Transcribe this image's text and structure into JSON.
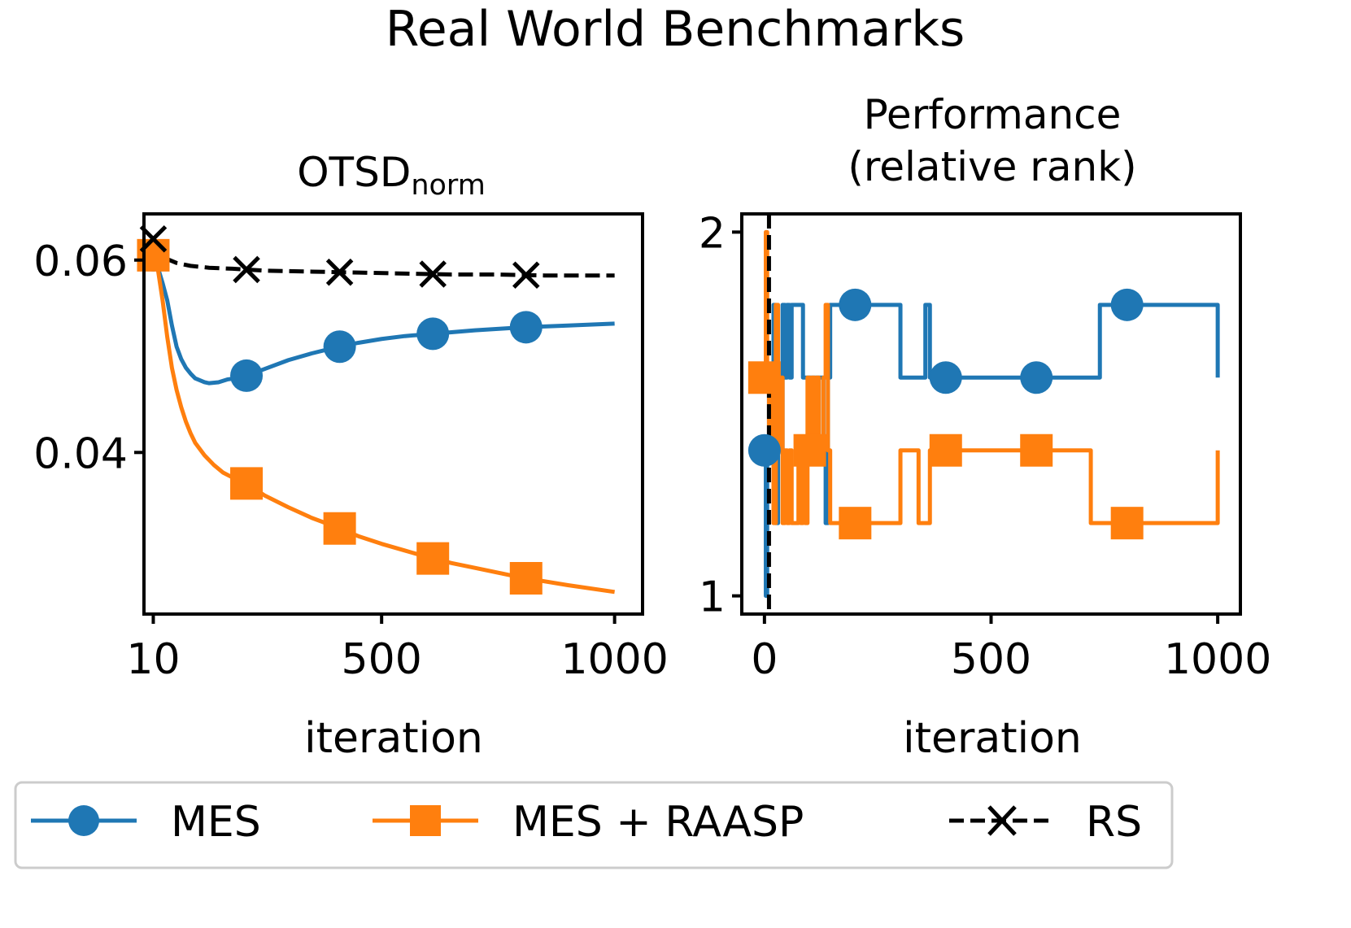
{
  "suptitle": "Real World Benchmarks",
  "colors": {
    "mes": "#1f77b4",
    "raasp": "#ff7f0e",
    "rs": "#000000",
    "legend_border": "#cccccc"
  },
  "legend": {
    "items": [
      {
        "label": "MES",
        "marker": "circle",
        "color": "#1f77b4"
      },
      {
        "label": "MES + RAASP",
        "marker": "square",
        "color": "#ff7f0e"
      },
      {
        "label": "RS",
        "marker": "x",
        "color": "#000000",
        "dashed": true
      }
    ]
  },
  "chart_data": [
    {
      "type": "line",
      "title_main": "OTSD",
      "title_sub": "norm",
      "xlabel": "iteration",
      "ylabel": "",
      "xlim": [
        -10,
        1060
      ],
      "ylim": [
        0.0232,
        0.0648
      ],
      "xticks": [
        10,
        500,
        1000
      ],
      "yticks": [
        0.04,
        0.06
      ],
      "ytick_labels": [
        "0.04",
        "0.06"
      ],
      "series": [
        {
          "name": "MES",
          "x": [
            10,
            20,
            30,
            40,
            50,
            60,
            70,
            80,
            90,
            100,
            110,
            120,
            130,
            150,
            170,
            200,
            250,
            300,
            350,
            400,
            450,
            500,
            550,
            600,
            700,
            800,
            900,
            1000
          ],
          "y": [
            0.0605,
            0.0592,
            0.0576,
            0.0558,
            0.0532,
            0.051,
            0.0497,
            0.0488,
            0.0482,
            0.0477,
            0.0475,
            0.0473,
            0.0472,
            0.0473,
            0.0476,
            0.0478,
            0.0487,
            0.0496,
            0.0503,
            0.0509,
            0.0514,
            0.0518,
            0.0521,
            0.0523,
            0.0527,
            0.053,
            0.0532,
            0.0534
          ],
          "marker_x": [
            10,
            210,
            410,
            610,
            810
          ]
        },
        {
          "name": "MES + RAASP",
          "x": [
            10,
            20,
            30,
            40,
            50,
            60,
            70,
            80,
            90,
            100,
            120,
            140,
            160,
            180,
            200,
            250,
            300,
            350,
            400,
            450,
            500,
            550,
            600,
            650,
            700,
            800,
            900,
            1000
          ],
          "y": [
            0.0605,
            0.059,
            0.0558,
            0.052,
            0.0488,
            0.0465,
            0.0447,
            0.0432,
            0.042,
            0.041,
            0.0397,
            0.0387,
            0.0379,
            0.0374,
            0.0371,
            0.0355,
            0.0343,
            0.0332,
            0.0323,
            0.0313,
            0.0305,
            0.0298,
            0.0291,
            0.0285,
            0.028,
            0.027,
            0.0262,
            0.0255
          ],
          "marker_x": [
            10,
            210,
            410,
            610,
            810
          ]
        },
        {
          "name": "RS",
          "x": [
            10,
            25,
            40,
            60,
            90,
            130,
            180,
            250,
            350,
            450,
            550,
            650,
            750,
            850,
            950,
            1000
          ],
          "y": [
            0.0622,
            0.0608,
            0.0601,
            0.0597,
            0.0594,
            0.0592,
            0.0591,
            0.0589,
            0.0588,
            0.0587,
            0.0586,
            0.0585,
            0.0585,
            0.0584,
            0.0584,
            0.0584
          ],
          "marker_x": [
            10,
            210,
            410,
            610,
            810
          ],
          "dashed": true
        }
      ]
    },
    {
      "type": "line",
      "title_lines": [
        "Performance",
        "(relative rank)"
      ],
      "xlabel": "iteration",
      "ylabel": "",
      "xlim": [
        -50,
        1050
      ],
      "ylim": [
        0.95,
        2.05
      ],
      "xticks": [
        0,
        500,
        1000
      ],
      "yticks": [
        1,
        2
      ],
      "series": [
        {
          "name": "MES",
          "step": true,
          "x": [
            0,
            3,
            6,
            10,
            15,
            20,
            25,
            30,
            35,
            40,
            45,
            50,
            55,
            60,
            65,
            70,
            75,
            80,
            85,
            90,
            95,
            100,
            105,
            110,
            115,
            120,
            125,
            130,
            135,
            140,
            145,
            150,
            160,
            170,
            180,
            190,
            200,
            250,
            300,
            320,
            340,
            355,
            365,
            380,
            400,
            500,
            600,
            700,
            720,
            740,
            800,
            900,
            1000
          ],
          "y": [
            1.4,
            1.0,
            1.4,
            1.6,
            1.4,
            1.8,
            1.2,
            1.6,
            1.4,
            1.8,
            1.6,
            1.8,
            1.6,
            1.8,
            1.8,
            1.8,
            1.8,
            1.8,
            1.6,
            1.6,
            1.6,
            1.6,
            1.6,
            1.6,
            1.6,
            1.6,
            1.6,
            1.4,
            1.2,
            1.6,
            1.8,
            1.8,
            1.8,
            1.8,
            1.8,
            1.8,
            1.8,
            1.8,
            1.6,
            1.6,
            1.6,
            1.8,
            1.6,
            1.6,
            1.6,
            1.6,
            1.6,
            1.6,
            1.6,
            1.8,
            1.8,
            1.8,
            1.6
          ],
          "marker_x": [
            0,
            200,
            400,
            600,
            800
          ]
        },
        {
          "name": "MES + RAASP",
          "step": true,
          "x": [
            0,
            3,
            6,
            10,
            15,
            20,
            25,
            30,
            35,
            40,
            45,
            50,
            55,
            60,
            65,
            70,
            75,
            80,
            85,
            90,
            95,
            100,
            105,
            110,
            115,
            120,
            125,
            130,
            135,
            140,
            145,
            150,
            160,
            170,
            180,
            190,
            200,
            250,
            300,
            320,
            340,
            355,
            365,
            380,
            400,
            500,
            600,
            700,
            720,
            740,
            800,
            900,
            1000
          ],
          "y": [
            1.6,
            2.0,
            1.6,
            1.4,
            1.6,
            1.2,
            1.8,
            1.4,
            1.6,
            1.2,
            1.4,
            1.2,
            1.4,
            1.2,
            1.2,
            1.2,
            1.4,
            1.2,
            1.4,
            1.2,
            1.6,
            1.4,
            1.6,
            1.4,
            1.6,
            1.4,
            1.4,
            1.6,
            1.8,
            1.4,
            1.2,
            1.2,
            1.2,
            1.2,
            1.2,
            1.2,
            1.2,
            1.2,
            1.4,
            1.4,
            1.2,
            1.2,
            1.4,
            1.4,
            1.4,
            1.4,
            1.4,
            1.4,
            1.2,
            1.2,
            1.2,
            1.2,
            1.4
          ],
          "marker_x": [
            0,
            100,
            200,
            400,
            600,
            800
          ]
        },
        {
          "name": "RS",
          "vertical_line_x": 10,
          "dashed": true
        }
      ]
    }
  ]
}
